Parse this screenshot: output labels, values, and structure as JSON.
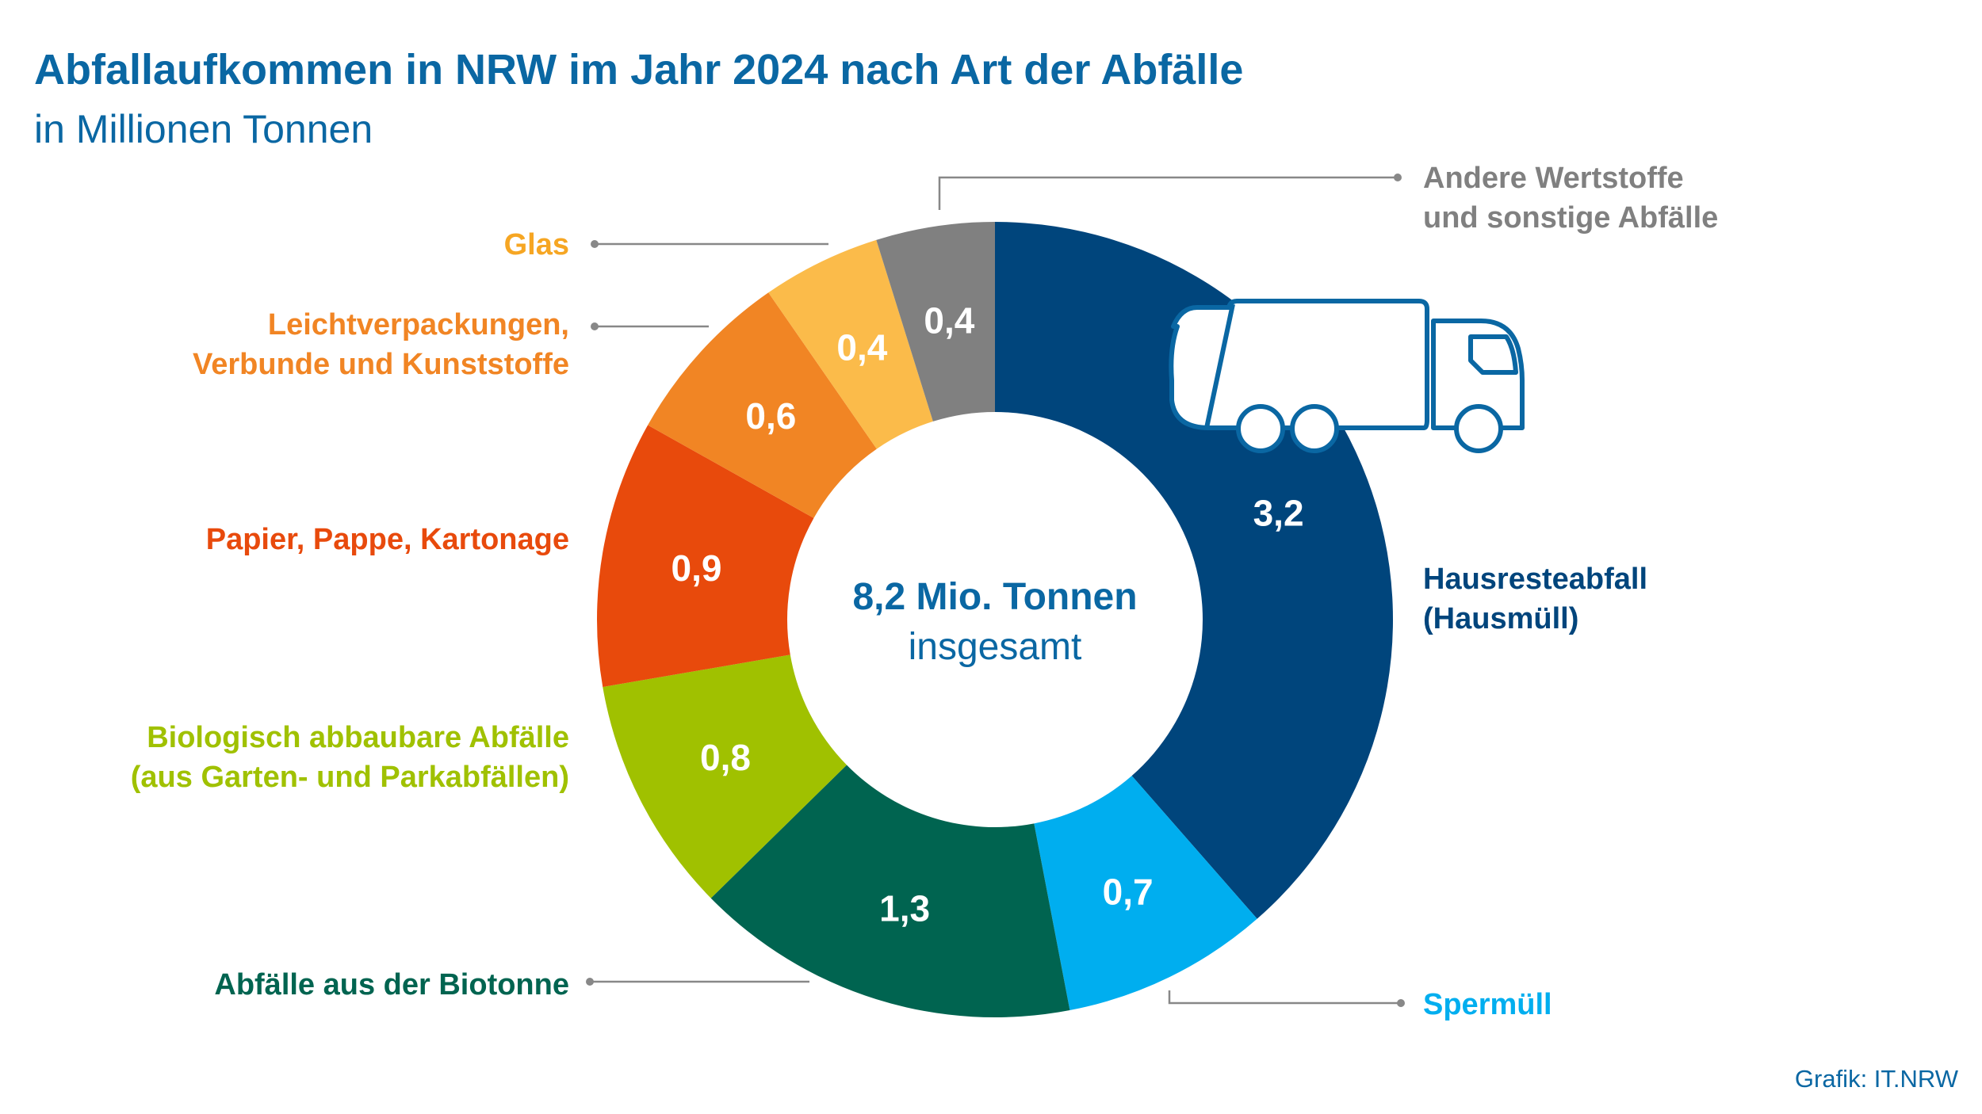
{
  "title": "Abfallaufkommen in NRW im Jahr 2024 nach Art der Abfälle",
  "subtitle": "in Millionen Tonnen",
  "credit": "Grafik: IT.NRW",
  "center": {
    "total": "8,2 Mio. Tonnen",
    "caption": "insgesamt"
  },
  "colors": {
    "title": "#0a67a3",
    "leader": "#888888",
    "truck": "#0a67a3"
  },
  "chart_data": {
    "type": "pie",
    "variant": "donut",
    "title": "Abfallaufkommen in NRW im Jahr 2024 nach Art der Abfälle",
    "subtitle": "in Millionen Tonnen",
    "unit": "Millionen Tonnen",
    "total": 8.2,
    "direction": "clockwise from top",
    "slices": [
      {
        "label": [
          "Hausresteabfall",
          "(Hausmüll)"
        ],
        "value": 3.2,
        "value_label": "3,2",
        "color": "#00457c",
        "label_color": "#00457c"
      },
      {
        "label": [
          "Spermüll"
        ],
        "value": 0.7,
        "value_label": "0,7",
        "color": "#00aeef",
        "label_color": "#00aeef"
      },
      {
        "label": [
          "Abfälle aus der Biotonne"
        ],
        "value": 1.3,
        "value_label": "1,3",
        "color": "#006450",
        "label_color": "#006450"
      },
      {
        "label": [
          "Biologisch abbaubare Abfälle",
          "(aus Garten- und Parkabfällen)"
        ],
        "value": 0.8,
        "value_label": "0,8",
        "color": "#a0c100",
        "label_color": "#a0c100"
      },
      {
        "label": [
          "Papier, Pappe, Kartonage"
        ],
        "value": 0.9,
        "value_label": "0,9",
        "color": "#e84a0c",
        "label_color": "#e84a0c"
      },
      {
        "label": [
          "Leichtverpackungen,",
          "Verbunde und Kunststoffe"
        ],
        "value": 0.6,
        "value_label": "0,6",
        "color": "#f18524",
        "label_color": "#f18524"
      },
      {
        "label": [
          "Glas"
        ],
        "value": 0.4,
        "value_label": "0,4",
        "color": "#fbbb4a",
        "label_color": "#f6a623"
      },
      {
        "label": [
          "Andere Wertstoffe",
          "und sonstige Abfälle"
        ],
        "value": 0.4,
        "value_label": "0,4",
        "color": "#808080",
        "label_color": "#808080"
      }
    ]
  }
}
